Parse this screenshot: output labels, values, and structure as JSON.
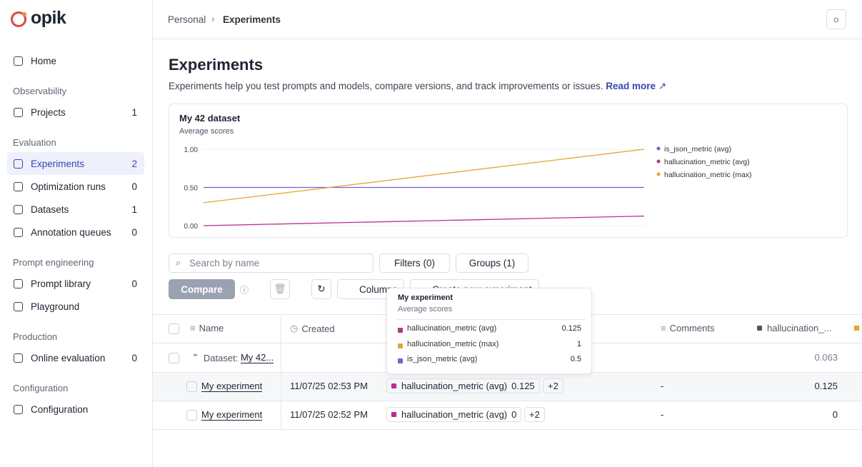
{
  "sidebar": {
    "logo": "opik",
    "sections": [
      {
        "items": [
          {
            "label": "Home"
          }
        ]
      },
      {
        "title": "Observability",
        "items": [
          {
            "label": "Projects",
            "count": 1
          }
        ]
      },
      {
        "title": "Evaluation",
        "items": [
          {
            "label": "Experiments",
            "count": 2
          },
          {
            "label": "Optimization runs",
            "count": 0
          },
          {
            "label": "Datasets",
            "count": 1
          },
          {
            "label": "Annotation queues",
            "count": 0
          }
        ]
      },
      {
        "title": "Prompt engineering",
        "items": [
          {
            "label": "Prompt library",
            "count": 0
          },
          {
            "label": "Playground"
          }
        ]
      },
      {
        "title": "Production",
        "items": [
          {
            "label": "Online evaluation",
            "count": 0
          }
        ]
      },
      {
        "title": "Configuration",
        "items": [
          {
            "label": "Configuration"
          }
        ]
      }
    ]
  },
  "breadcrumb": [
    "Personal",
    "Experiments"
  ],
  "page": {
    "title": "Experiments",
    "description": "Experiments help you test prompts and models, compare versions, and track improvements or issues.",
    "link": "Read more"
  },
  "chart": {
    "type": "line",
    "title": "My 42 dataset",
    "subtitle": "Average scores",
    "categories": [
      null,
      null
    ],
    "series": [
      {
        "name": "is_json_metric (avg)",
        "color": "#7b5ce0",
        "values": [
          0.5,
          0.5
        ]
      },
      {
        "name": "hallucination_metric (avg)",
        "color": "#b8318c",
        "values": [
          0,
          0.125
        ]
      },
      {
        "name": "hallucination_metric (max)",
        "color": "#e6a52e",
        "values": [
          0.3,
          1
        ]
      }
    ],
    "ylim": [
      0,
      1
    ],
    "yticks": [
      {
        "value": 1,
        "label": "1.00"
      },
      {
        "value": 0.5,
        "label": "0.50"
      },
      {
        "value": 0,
        "label": "0.00"
      }
    ],
    "grid": true
  },
  "toolbar": {
    "search": "Search by name",
    "filters": "Filters (0)",
    "groups": "Groups (1)",
    "compare": "Compare",
    "columns": "Columns",
    "create": "Create new experiment"
  },
  "tooltip": {
    "title": "My experiment",
    "subtitle": "Average scores",
    "rows": [
      {
        "label": "hallucination_metric (avg)",
        "value": 0.125,
        "color": "#b8318c"
      },
      {
        "label": "hallucination_metric (max)",
        "value": 1,
        "color": "#e6a52e"
      },
      {
        "label": "is_json_metric (avg)",
        "value": 0.5,
        "color": "#7b5ce0"
      }
    ]
  },
  "table": {
    "headers": [
      "Name",
      "Created",
      "Comments",
      "hallucination_..."
    ],
    "group": {
      "label": "Dataset:",
      "name": "My 42...",
      "value": 0.063
    },
    "rows": [
      {
        "name": "My experiment",
        "created": "11/07/25 02:53 PM",
        "score_name": "hallucination_metric (avg)",
        "score": 0.125,
        "more": "+2",
        "comments": "-",
        "value": 0.125
      },
      {
        "name": "My experiment",
        "created": "11/07/25 02:52 PM",
        "score_name": "hallucination_metric (avg)",
        "score": 0,
        "more": "+2",
        "comments": "-",
        "value": 0
      }
    ]
  }
}
